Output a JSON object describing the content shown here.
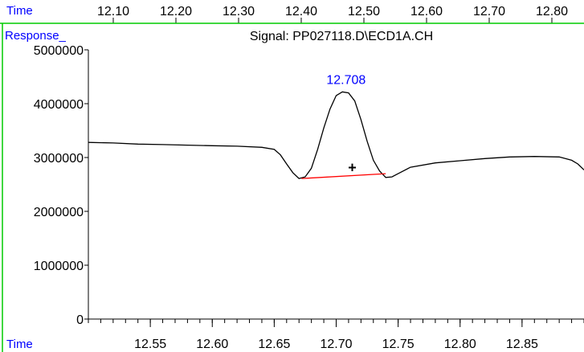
{
  "top_ruler": {
    "label": "Time",
    "ticks": [
      "12.10",
      "12.20",
      "12.30",
      "12.40",
      "12.50",
      "12.60",
      "12.70",
      "12.80"
    ],
    "color": "#00cc00",
    "label_color": "#0000ff"
  },
  "chart_data": {
    "type": "line",
    "title": "Signal: PP027118.D\\ECD1A.CH",
    "ylabel": "Response_",
    "xlabel": "Time",
    "xlim": [
      12.5,
      12.9
    ],
    "ylim": [
      0,
      5000000
    ],
    "y_ticks": [
      0,
      1000000,
      2000000,
      3000000,
      4000000,
      5000000
    ],
    "y_tick_labels": [
      "0",
      "1000000",
      "2000000",
      "3000000",
      "4000000",
      "5000000"
    ],
    "x_ticks": [
      12.55,
      12.6,
      12.65,
      12.7,
      12.75,
      12.8,
      12.85
    ],
    "x_tick_labels": [
      "12.55",
      "12.60",
      "12.65",
      "12.70",
      "12.75",
      "12.80",
      "12.85"
    ],
    "x_minor_step": 0.01,
    "grid": false,
    "series": [
      {
        "color": "#000000",
        "points": [
          [
            12.5,
            3280000
          ],
          [
            12.52,
            3270000
          ],
          [
            12.54,
            3250000
          ],
          [
            12.56,
            3240000
          ],
          [
            12.58,
            3230000
          ],
          [
            12.6,
            3220000
          ],
          [
            12.62,
            3210000
          ],
          [
            12.64,
            3190000
          ],
          [
            12.65,
            3150000
          ],
          [
            12.655,
            3050000
          ],
          [
            12.66,
            2880000
          ],
          [
            12.665,
            2720000
          ],
          [
            12.67,
            2610000
          ],
          [
            12.675,
            2640000
          ],
          [
            12.68,
            2800000
          ],
          [
            12.685,
            3150000
          ],
          [
            12.69,
            3550000
          ],
          [
            12.695,
            3900000
          ],
          [
            12.7,
            4150000
          ],
          [
            12.705,
            4220000
          ],
          [
            12.71,
            4200000
          ],
          [
            12.715,
            4050000
          ],
          [
            12.72,
            3700000
          ],
          [
            12.725,
            3300000
          ],
          [
            12.73,
            2950000
          ],
          [
            12.735,
            2750000
          ],
          [
            12.74,
            2630000
          ],
          [
            12.745,
            2640000
          ],
          [
            12.75,
            2700000
          ],
          [
            12.76,
            2820000
          ],
          [
            12.78,
            2900000
          ],
          [
            12.8,
            2940000
          ],
          [
            12.82,
            2980000
          ],
          [
            12.84,
            3010000
          ],
          [
            12.86,
            3020000
          ],
          [
            12.88,
            3010000
          ],
          [
            12.89,
            2950000
          ],
          [
            12.895,
            2880000
          ],
          [
            12.9,
            2770000
          ]
        ]
      }
    ],
    "baseline": {
      "color": "#ff0000",
      "start": [
        12.672,
        2610000
      ],
      "end": [
        12.74,
        2700000
      ]
    },
    "peak_annotation": {
      "text": "12.708",
      "x": 12.708,
      "y": 4220000,
      "color": "#0000ff"
    },
    "marker": {
      "symbol": "+",
      "x": 12.713,
      "y": 2810000
    }
  }
}
